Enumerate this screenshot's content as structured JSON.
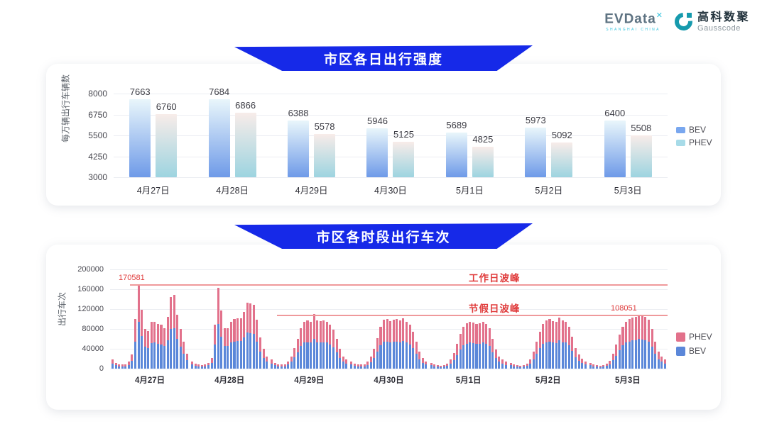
{
  "header": {
    "evdata": {
      "name": "EVData",
      "sup": "✕",
      "tagline": "SHANGHAI CHINA"
    },
    "gausscode": {
      "cn": "高科数聚",
      "en": "Gausscode"
    }
  },
  "colors": {
    "banner_blue": "#1629e8",
    "bev_blue": "#5b87d9",
    "phev_pink": "#e2718b",
    "annotation_red": "#e03c3c",
    "peak_line_red": "#ef999b"
  },
  "chart_data": [
    {
      "type": "bar",
      "title": "市区各日出行强度",
      "ylabel": "每万辆出行车辆数",
      "ylim": [
        3000,
        8000
      ],
      "yticks": [
        8000,
        6750,
        5500,
        4250,
        3000
      ],
      "categories": [
        "4月27日",
        "4月28日",
        "4月29日",
        "4月30日",
        "5月1日",
        "5月2日",
        "5月3日"
      ],
      "grid": true,
      "legend_position": "right",
      "series": [
        {
          "name": "BEV",
          "values": [
            7663,
            7684,
            6388,
            5946,
            5689,
            5973,
            6400
          ],
          "gradient": [
            "#e9f6fb",
            "#6e9ae8"
          ],
          "legend_color": "#79a7ef"
        },
        {
          "name": "PHEV",
          "values": [
            6760,
            6866,
            5578,
            5125,
            4825,
            5092,
            5508
          ],
          "gradient": [
            "#f8ece9",
            "#9dd4e0"
          ],
          "legend_color": "#a7dbe8"
        }
      ]
    },
    {
      "type": "bar",
      "stacked": true,
      "title": "市区各时段出行车次",
      "ylabel": "出行车次",
      "ylim": [
        0,
        200000
      ],
      "yticks": [
        200000,
        160000,
        120000,
        80000,
        40000,
        0
      ],
      "categories": [
        "4月27日",
        "4月28日",
        "4月29日",
        "4月30日",
        "5月1日",
        "5月2日",
        "5月3日"
      ],
      "bars_per_category": 24,
      "grid": true,
      "legend_position": "right",
      "legend_order": [
        "PHEV",
        "BEV"
      ],
      "series": [
        {
          "name": "BEV",
          "color": "#5b87d9",
          "values_by_day": [
            [
              9900,
              6600,
              4950,
              4400,
              4950,
              7700,
              15400,
              55000,
              93820,
              65450,
              44000,
              41800,
              51700,
              52250,
              49500,
              48400,
              45100,
              57200,
              79750,
              81400,
              59400,
              44000,
              30250,
              16500
            ],
            [
              8250,
              5500,
              4400,
              3850,
              4400,
              6600,
              11550,
              48400,
              89650,
              64350,
              45100,
              45100,
              52250,
              55000,
              55550,
              56100,
              63250,
              73150,
              72050,
              70400,
              53900,
              34650,
              22000,
              13750
            ],
            [
              9900,
              6600,
              4950,
              4400,
              4950,
              8250,
              13750,
              23100,
              33000,
              45100,
              52250,
              53350,
              52250,
              60500,
              53350,
              52800,
              53350,
              52250,
              48400,
              42900,
              33000,
              22000,
              13750,
              9900
            ],
            [
              8250,
              5500,
              4400,
              4400,
              4950,
              7700,
              13200,
              22000,
              34100,
              46750,
              53900,
              55000,
              52800,
              53900,
              55000,
              53350,
              56100,
              52250,
              48400,
              41250,
              30250,
              19250,
              12100,
              8250
            ],
            [
              6600,
              4400,
              3850,
              3300,
              3850,
              5500,
              9900,
              17600,
              27500,
              38500,
              46750,
              50600,
              52250,
              51150,
              49500,
              50600,
              52250,
              49500,
              45100,
              33000,
              20900,
              13750,
              9900,
              7700
            ],
            [
              6600,
              4400,
              3850,
              3300,
              3850,
              5500,
              9900,
              19250,
              30250,
              41250,
              49500,
              53350,
              55000,
              52800,
              51700,
              56650,
              53350,
              52250,
              46750,
              35750,
              23100,
              15400,
              11000,
              8250
            ],
            [
              6600,
              4400,
              3850,
              3300,
              3850,
              5500,
              8800,
              16500,
              26400,
              37400,
              46750,
              52250,
              55000,
              56650,
              57750,
              59428,
              58300,
              57200,
              53900,
              44000,
              30250,
              19250,
              13750,
              9900
            ]
          ]
        },
        {
          "name": "PHEV",
          "color": "#e2718b",
          "values_by_day": [
            [
              8100,
              5400,
              4050,
              3600,
              4050,
              6300,
              12600,
              45000,
              76761,
              53550,
              36000,
              34200,
              42300,
              42750,
              40500,
              39600,
              36900,
              46800,
              65250,
              66600,
              48600,
              36000,
              24750,
              13500
            ],
            [
              6750,
              4500,
              3600,
              3150,
              3600,
              5400,
              9450,
              39600,
              73350,
              52650,
              36900,
              36900,
              42750,
              45000,
              45450,
              45900,
              51750,
              59850,
              58950,
              57600,
              44100,
              28350,
              18000,
              11250
            ],
            [
              8100,
              5400,
              4050,
              3600,
              4050,
              6750,
              11250,
              18900,
              27000,
              36900,
              42750,
              43650,
              42750,
              49500,
              43650,
              43200,
              43650,
              42750,
              39600,
              35100,
              27000,
              18000,
              11250,
              8100
            ],
            [
              6750,
              4500,
              3600,
              3600,
              4050,
              6300,
              10800,
              18000,
              27900,
              38250,
              44100,
              45000,
              43200,
              44100,
              45000,
              43650,
              45900,
              42750,
              39600,
              33750,
              24750,
              15750,
              9900,
              6750
            ],
            [
              5400,
              3600,
              3150,
              2700,
              3150,
              4500,
              8100,
              14400,
              22500,
              31500,
              38250,
              41400,
              42750,
              41850,
              40500,
              41400,
              42750,
              40500,
              36900,
              27000,
              17100,
              11250,
              8100,
              6300
            ],
            [
              5400,
              3600,
              3150,
              2700,
              3150,
              4500,
              8100,
              15750,
              24750,
              33750,
              40500,
              43650,
              45000,
              43200,
              42300,
              46350,
              43650,
              42750,
              38250,
              29250,
              18900,
              12600,
              9000,
              6750
            ],
            [
              5400,
              3600,
              3150,
              2700,
              3150,
              4500,
              7200,
              13500,
              21600,
              30600,
              38250,
              42750,
              45000,
              46350,
              47250,
              48623,
              47700,
              46800,
              44100,
              36000,
              24750,
              15750,
              11250,
              8100
            ]
          ]
        }
      ],
      "annotations": {
        "workday_peak": {
          "label": "工作日波峰",
          "value": 170581,
          "value_label": "170581"
        },
        "holiday_peak": {
          "label": "节假日波峰",
          "value": 108051,
          "value_label": "108051"
        }
      }
    }
  ]
}
